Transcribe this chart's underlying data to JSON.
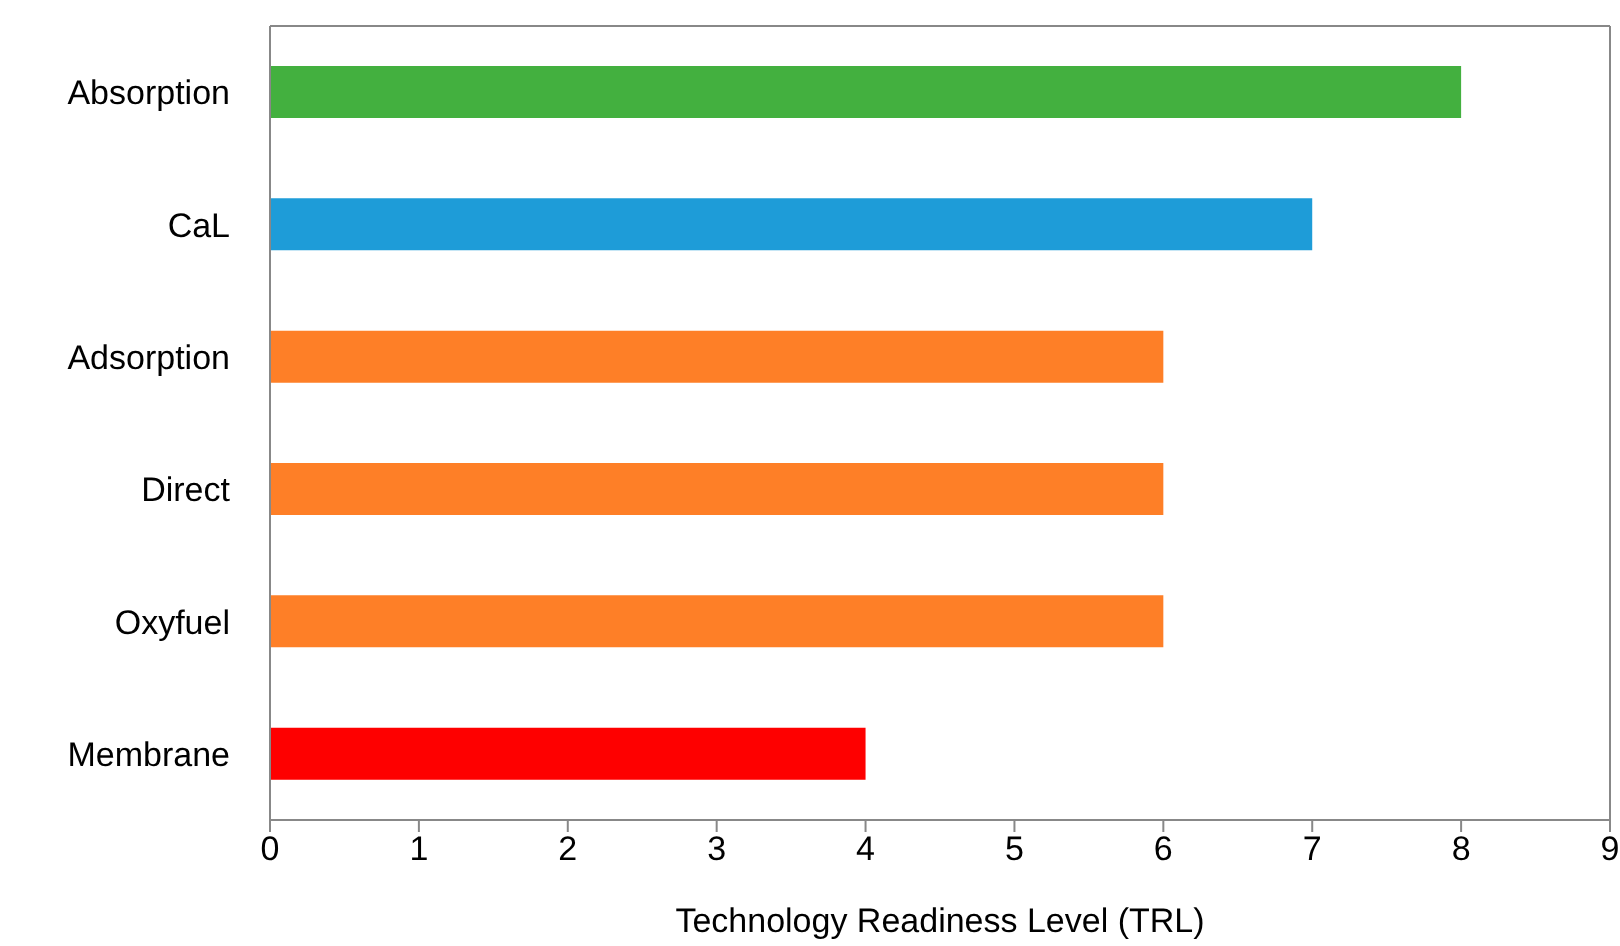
{
  "chart_data": {
    "type": "bar",
    "orientation": "horizontal",
    "xlabel": "Technology Readiness Level (TRL)",
    "categories": [
      "Absorption",
      "CaL",
      "Adsorption",
      "Direct",
      "Oxyfuel",
      "Membrane"
    ],
    "values": [
      8,
      7,
      6,
      6,
      6,
      4
    ],
    "colors": [
      "#43b03f",
      "#1e9cd8",
      "#fe7f27",
      "#fe7f27",
      "#fe7f27",
      "#fe0000"
    ],
    "xlim": [
      0,
      9
    ],
    "xticks": [
      0,
      1,
      2,
      3,
      4,
      5,
      6,
      7,
      8,
      9
    ],
    "grid": false,
    "legend": false
  }
}
